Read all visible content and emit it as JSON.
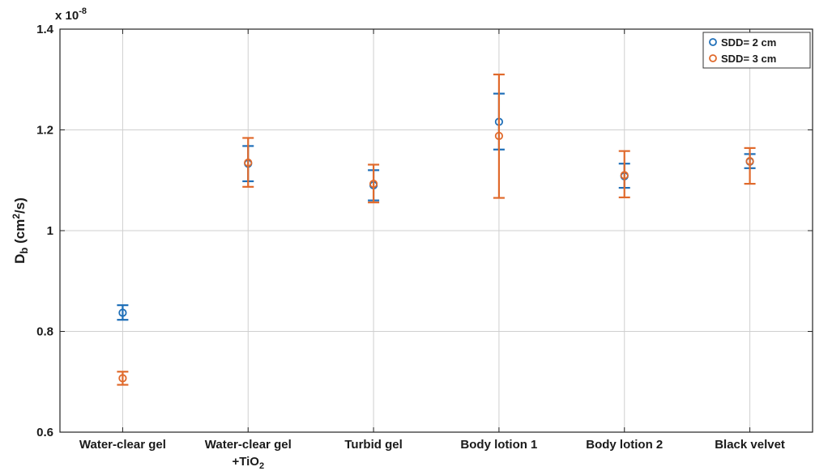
{
  "chart_data": {
    "type": "scatter",
    "variant": "error-bar",
    "categories": [
      {
        "line1": "Water-clear gel",
        "line2_prefix": "",
        "line2_sub": ""
      },
      {
        "line1": "Water-clear gel",
        "line2_prefix": "+TiO",
        "line2_sub": "2"
      },
      {
        "line1": "Turbid gel",
        "line2_prefix": "",
        "line2_sub": ""
      },
      {
        "line1": "Body lotion 1",
        "line2_prefix": "",
        "line2_sub": ""
      },
      {
        "line1": "Body lotion 2",
        "line2_prefix": "",
        "line2_sub": ""
      },
      {
        "line1": "Black velvet",
        "line2_prefix": "",
        "line2_sub": ""
      }
    ],
    "ylabel": {
      "main": "D",
      "main_sub": "b",
      "paren_open": " (cm",
      "unit_sup": "2",
      "paren_close": "/s)"
    },
    "y_multiplier": {
      "base": "x 10",
      "exponent": "-8"
    },
    "ylim": [
      0.6,
      1.4
    ],
    "yticks": [
      0.6,
      0.8,
      1.0,
      1.2,
      1.4
    ],
    "ytick_labels": [
      "0.6",
      "0.8",
      "1",
      "1.2",
      "1.4"
    ],
    "grid": true,
    "legend_position": "top-right",
    "series": [
      {
        "name": "SDD= 2 cm",
        "color": "#1f6fb8",
        "values": [
          0.837,
          1.133,
          1.09,
          1.216,
          1.108,
          1.137
        ],
        "err_low": [
          0.823,
          1.098,
          1.06,
          1.161,
          1.085,
          1.124
        ],
        "err_high": [
          0.852,
          1.168,
          1.12,
          1.272,
          1.133,
          1.152
        ]
      },
      {
        "name": "SDD= 3 cm",
        "color": "#e06a2c",
        "values": [
          0.707,
          1.135,
          1.093,
          1.188,
          1.11,
          1.138
        ],
        "err_low": [
          0.694,
          1.087,
          1.056,
          1.065,
          1.066,
          1.093
        ],
        "err_high": [
          0.72,
          1.184,
          1.131,
          1.31,
          1.158,
          1.164
        ]
      }
    ]
  }
}
